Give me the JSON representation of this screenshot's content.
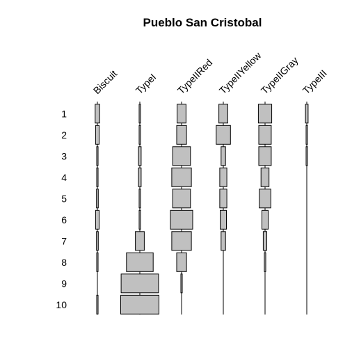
{
  "chart_data": {
    "type": "battleship",
    "title": "Pueblo San Cristobal",
    "columns": [
      "Biscuit",
      "TypeI",
      "TypeIIRed",
      "TypeIIYellow",
      "TypeIIGray",
      "TypeIII"
    ],
    "rows": [
      "1",
      "2",
      "3",
      "4",
      "5",
      "6",
      "7",
      "8",
      "9",
      "10"
    ],
    "values": [
      [
        5,
        1,
        10,
        10,
        15,
        3
      ],
      [
        4,
        1,
        11,
        16,
        14,
        1
      ],
      [
        1,
        3,
        20,
        5,
        14,
        1
      ],
      [
        1,
        3,
        22,
        8,
        9,
        0
      ],
      [
        2,
        1,
        20,
        8,
        13,
        0
      ],
      [
        4,
        1,
        25,
        7,
        7,
        0
      ],
      [
        2,
        10,
        22,
        5,
        4,
        0
      ],
      [
        1,
        30,
        11,
        0,
        1,
        0
      ],
      [
        0,
        42,
        1,
        0,
        0,
        0
      ],
      [
        1,
        43,
        0,
        0,
        0,
        0
      ]
    ],
    "bar_color": "#c0c0c0",
    "grid": false
  }
}
